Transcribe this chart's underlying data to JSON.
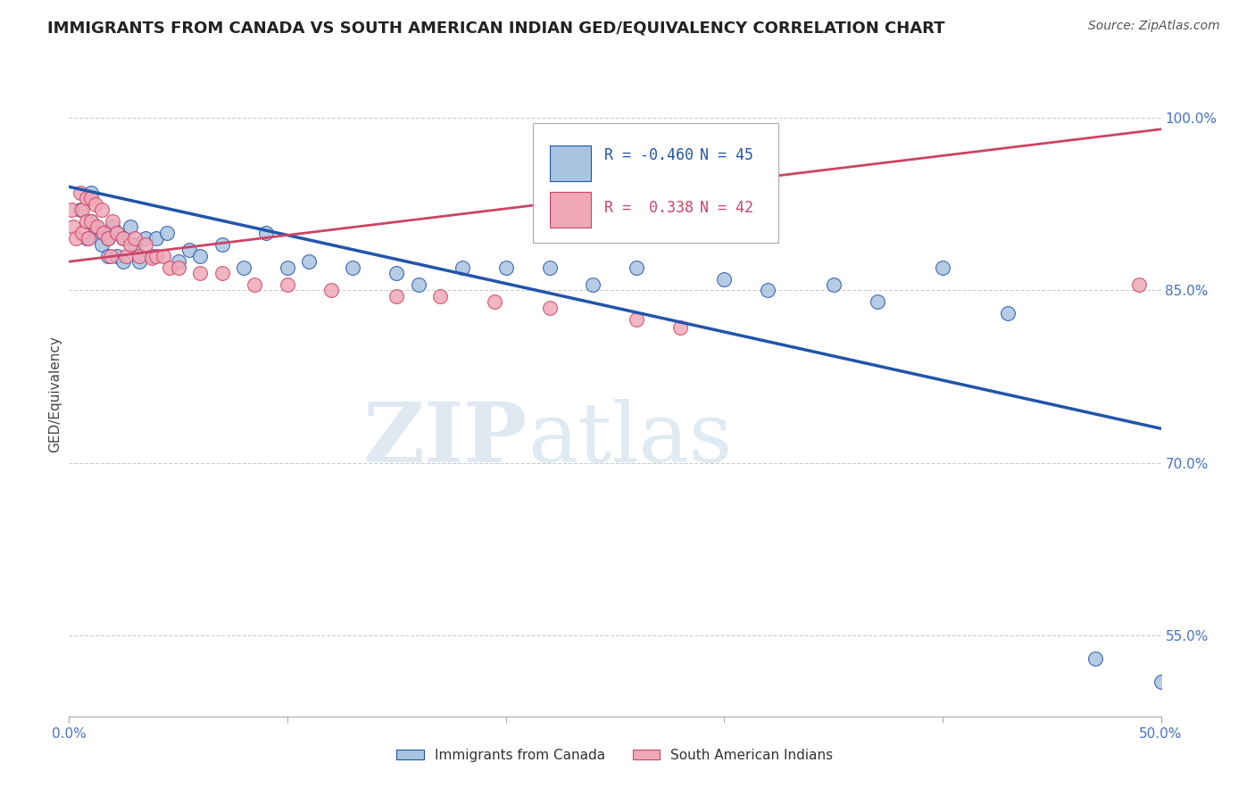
{
  "title": "IMMIGRANTS FROM CANADA VS SOUTH AMERICAN INDIAN GED/EQUIVALENCY CORRELATION CHART",
  "source": "Source: ZipAtlas.com",
  "ylabel": "GED/Equivalency",
  "legend_label1": "Immigrants from Canada",
  "legend_label2": "South American Indians",
  "R1": -0.46,
  "N1": 45,
  "R2": 0.338,
  "N2": 42,
  "color1": "#a8c4e0",
  "color2": "#f0a8b8",
  "line_color1": "#2255aa",
  "line_color2": "#cc4466",
  "xlim": [
    0.0,
    0.5
  ],
  "ylim": [
    0.48,
    1.04
  ],
  "yticks": [
    0.55,
    0.7,
    0.85,
    1.0
  ],
  "ytick_labels": [
    "55.0%",
    "70.0%",
    "85.0%",
    "100.0%"
  ],
  "xticks": [
    0.0,
    0.1,
    0.2,
    0.3,
    0.4,
    0.5
  ],
  "xtick_labels": [
    "0.0%",
    "",
    "",
    "",
    "",
    "50.0%"
  ],
  "blue_dots_x": [
    0.005,
    0.008,
    0.01,
    0.01,
    0.012,
    0.015,
    0.015,
    0.018,
    0.018,
    0.02,
    0.022,
    0.022,
    0.025,
    0.025,
    0.028,
    0.03,
    0.032,
    0.035,
    0.038,
    0.04,
    0.045,
    0.05,
    0.055,
    0.06,
    0.07,
    0.08,
    0.09,
    0.1,
    0.11,
    0.13,
    0.15,
    0.16,
    0.18,
    0.2,
    0.22,
    0.24,
    0.26,
    0.3,
    0.32,
    0.35,
    0.37,
    0.4,
    0.43,
    0.47,
    0.5
  ],
  "blue_dots_y": [
    0.92,
    0.895,
    0.935,
    0.91,
    0.905,
    0.9,
    0.89,
    0.895,
    0.88,
    0.905,
    0.9,
    0.88,
    0.895,
    0.875,
    0.905,
    0.89,
    0.875,
    0.895,
    0.88,
    0.895,
    0.9,
    0.875,
    0.885,
    0.88,
    0.89,
    0.87,
    0.9,
    0.87,
    0.875,
    0.87,
    0.865,
    0.855,
    0.87,
    0.87,
    0.87,
    0.855,
    0.87,
    0.86,
    0.85,
    0.855,
    0.84,
    0.87,
    0.83,
    0.53,
    0.51
  ],
  "pink_dots_x": [
    0.001,
    0.002,
    0.003,
    0.005,
    0.006,
    0.006,
    0.008,
    0.008,
    0.009,
    0.01,
    0.01,
    0.012,
    0.013,
    0.015,
    0.016,
    0.018,
    0.019,
    0.02,
    0.022,
    0.025,
    0.026,
    0.028,
    0.03,
    0.032,
    0.035,
    0.038,
    0.04,
    0.043,
    0.046,
    0.05,
    0.06,
    0.07,
    0.085,
    0.1,
    0.12,
    0.15,
    0.17,
    0.195,
    0.22,
    0.26,
    0.28,
    0.49
  ],
  "pink_dots_y": [
    0.92,
    0.905,
    0.895,
    0.935,
    0.92,
    0.9,
    0.93,
    0.91,
    0.895,
    0.93,
    0.91,
    0.925,
    0.905,
    0.92,
    0.9,
    0.895,
    0.88,
    0.91,
    0.9,
    0.895,
    0.88,
    0.89,
    0.895,
    0.88,
    0.89,
    0.878,
    0.88,
    0.88,
    0.87,
    0.87,
    0.865,
    0.865,
    0.855,
    0.855,
    0.85,
    0.845,
    0.845,
    0.84,
    0.835,
    0.825,
    0.818,
    0.855
  ],
  "blue_line_x0": 0.0,
  "blue_line_y0": 0.94,
  "blue_line_x1": 0.5,
  "blue_line_y1": 0.73,
  "pink_line_x0": 0.0,
  "pink_line_y0": 0.875,
  "pink_line_x1": 0.5,
  "pink_line_y1": 0.99,
  "watermark_zip": "ZIP",
  "watermark_atlas": "atlas",
  "background_color": "#ffffff",
  "grid_color": "#cccccc",
  "tick_color": "#4472c4",
  "title_color": "#222222",
  "source_color": "#555555"
}
